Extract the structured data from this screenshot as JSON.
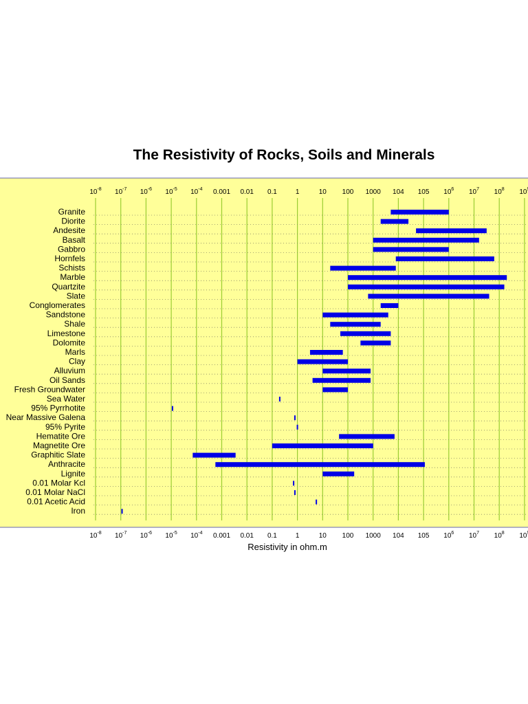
{
  "chart_data": {
    "type": "range-bar",
    "title": "The Resistivity of Rocks, Soils and Minerals",
    "xlabel": "Resistivity in ohm.m",
    "ylabel": "",
    "xscale": "log",
    "xlim": [
      -8,
      9
    ],
    "grid": "vertical",
    "colors": {
      "plot_bg": "#ffff99",
      "bar": "#0000e6",
      "grid": "#9acd32",
      "frame": "#6666aa",
      "dotted": "#888866"
    },
    "x_ticks": [
      {
        "exp": -8,
        "base": "10",
        "sup": "-8"
      },
      {
        "exp": -7,
        "base": "10",
        "sup": "-7"
      },
      {
        "exp": -6,
        "base": "10",
        "sup": "-6"
      },
      {
        "exp": -5,
        "base": "10",
        "sup": "-5"
      },
      {
        "exp": -4,
        "base": "10",
        "sup": "-4"
      },
      {
        "exp": -3,
        "base": "0.001",
        "sup": ""
      },
      {
        "exp": -2,
        "base": "0.01",
        "sup": ""
      },
      {
        "exp": -1,
        "base": "0.1",
        "sup": ""
      },
      {
        "exp": 0,
        "base": "1",
        "sup": ""
      },
      {
        "exp": 1,
        "base": "10",
        "sup": ""
      },
      {
        "exp": 2,
        "base": "100",
        "sup": ""
      },
      {
        "exp": 3,
        "base": "1000",
        "sup": ""
      },
      {
        "exp": 4,
        "base": "104",
        "sup": ""
      },
      {
        "exp": 5,
        "base": "105",
        "sup": ""
      },
      {
        "exp": 6,
        "base": "10",
        "sup": "6"
      },
      {
        "exp": 7,
        "base": "10",
        "sup": "7"
      },
      {
        "exp": 8,
        "base": "10",
        "sup": "8"
      },
      {
        "exp": 9,
        "base": "10",
        "sup": "9"
      }
    ],
    "categories": [
      "Granite",
      "Diorite",
      "Andesite",
      "Basalt",
      "Gabbro",
      "Hornfels",
      "Schists",
      "Marble",
      "Quartzite",
      "Slate",
      "Conglomerates",
      "Sandstone",
      "Shale",
      "Limestone",
      "Dolomite",
      "Marls",
      "Clay",
      "Alluvium",
      "Oil Sands",
      "Fresh Groundwater",
      "Sea Water",
      "95% Pyrrhotite",
      "Near Massive Galena",
      "95% Pyrite",
      "Hematite Ore",
      "Magnetite Ore",
      "Graphitic Slate",
      "Anthracite",
      "Lignite",
      "0.01 Molar Kcl",
      "0.01 Molar NaCl",
      "0.01 Acetic Acid",
      "Iron"
    ],
    "ranges_log10": [
      [
        3.7,
        6.0
      ],
      [
        3.3,
        4.4
      ],
      [
        4.7,
        7.5
      ],
      [
        3.0,
        7.2
      ],
      [
        3.0,
        6.0
      ],
      [
        3.9,
        7.8
      ],
      [
        1.3,
        3.9
      ],
      [
        2.0,
        8.3
      ],
      [
        2.0,
        8.2
      ],
      [
        2.8,
        7.6
      ],
      [
        3.3,
        4.0
      ],
      [
        1.0,
        3.6
      ],
      [
        1.3,
        3.3
      ],
      [
        1.7,
        3.7
      ],
      [
        2.5,
        3.7
      ],
      [
        0.5,
        1.8
      ],
      [
        0.0,
        2.0
      ],
      [
        1.0,
        2.9
      ],
      [
        0.6,
        2.9
      ],
      [
        1.0,
        2.0
      ],
      [
        -0.7,
        -0.7
      ],
      [
        -4.95,
        -4.95
      ],
      [
        -0.1,
        -0.1
      ],
      [
        0.0,
        0.0
      ],
      [
        1.65,
        3.85
      ],
      [
        -1.0,
        3.0
      ],
      [
        -4.15,
        -2.45
      ],
      [
        -3.25,
        5.05
      ],
      [
        1.0,
        2.25
      ],
      [
        -0.15,
        -0.15
      ],
      [
        -0.1,
        -0.1
      ],
      [
        0.75,
        0.75
      ],
      [
        -6.95,
        -6.95
      ]
    ]
  }
}
